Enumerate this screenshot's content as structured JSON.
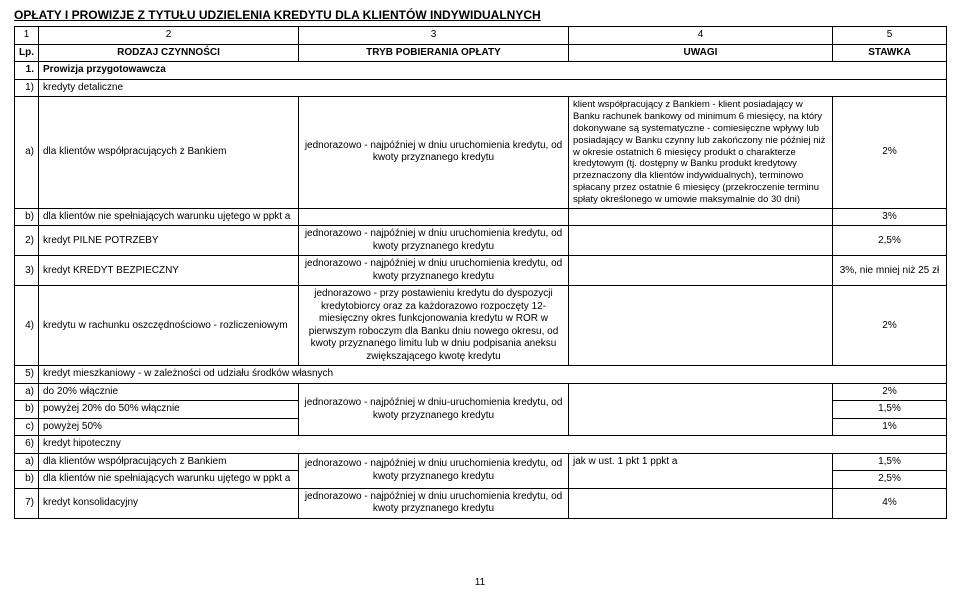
{
  "title": "OPŁATY I PROWIZJE Z TYTUŁU UDZIELENIA KREDYTU DLA KLIENTÓW INDYWIDUALNYCH",
  "header": {
    "c1": "1",
    "c2": "2",
    "c3": "3",
    "c4": "4",
    "c5": "5",
    "lp": "Lp.",
    "rodzaj": "RODZAJ CZYNNOŚCI",
    "tryb": "TRYB POBIERANIA OPŁATY",
    "uwagi": "UWAGI",
    "stawka": "STAWKA"
  },
  "r1": {
    "lp": "1.",
    "txt": "Prowizja przygotowawcza"
  },
  "r1_1": {
    "lp": "1)",
    "txt": "kredyty detaliczne"
  },
  "r1_a": {
    "lp": "a)",
    "txt": "dla klientów współpracujących z Bankiem",
    "tryb": "jednorazowo - najpóźniej w dniu uruchomienia kredytu, od kwoty przyznanego kredytu",
    "uwagi": "klient współpracujący z Bankiem - klient posiadający w Banku rachunek bankowy od minimum 6 miesięcy, na który dokonywane są systematyczne - comiesięczne wpływy lub posiadający w Banku czynny lub zakończony nie później niż w okresie ostatnich 6 miesięcy produkt o charakterze kredytowym (tj. dostępny w Banku produkt kredytowy przeznaczony dla klientów indywidualnych), terminowo spłacany przez ostatnie 6 miesięcy (przekroczenie terminu spłaty określonego w umowie maksymalnie do 30 dni)",
    "stawka": "2%"
  },
  "r1_b": {
    "lp": "b)",
    "txt": "dla klientów nie spełniających warunku ujętego w ppkt a",
    "stawka": "3%"
  },
  "r2": {
    "lp": "2)",
    "txt": "kredyt PILNE POTRZEBY",
    "tryb": "jednorazowo - najpóźniej w dniu uruchomienia kredytu, od kwoty przyznanego kredytu",
    "stawka": "2,5%"
  },
  "r3": {
    "lp": "3)",
    "txt": "kredyt KREDYT BEZPIECZNY",
    "tryb": "jednorazowo - najpóźniej w dniu uruchomienia kredytu, od kwoty przyznanego kredytu",
    "stawka": "3%, nie mniej niż 25 zł"
  },
  "r4": {
    "lp": "4)",
    "txt": "kredytu w rachunku oszczędnościowo - rozliczeniowym",
    "tryb": "jednorazowo - przy postawieniu kredytu do dyspozycji kredytobiorcy oraz za każdorazowo rozpoczęty 12-miesięczny okres funkcjonowania kredytu w ROR w pierwszym roboczym dla Banku dniu nowego okresu, od kwoty przyznanego limitu lub w dniu podpisania aneksu zwiększającego kwotę kredytu",
    "stawka": "2%"
  },
  "r5": {
    "lp": "5)",
    "txt": "kredyt mieszkaniowy - w zależności od udziału środków własnych"
  },
  "r5_a": {
    "lp": "a)",
    "txt": "do 20% włącznie",
    "stawka": "2%"
  },
  "r5_b": {
    "lp": "b)",
    "txt": "powyżej 20% do 50% włącznie",
    "tryb": "jednorazowo - najpóźniej w dniu-uruchomienia kredytu, od kwoty przyznanego kredytu",
    "stawka": "1,5%"
  },
  "r5_c": {
    "lp": "c)",
    "txt": "powyżej 50%",
    "stawka": "1%"
  },
  "r6": {
    "lp": "6)",
    "txt": "kredyt hipoteczny"
  },
  "r6_a": {
    "lp": "a)",
    "txt": "dla klientów współpracujących z Bankiem",
    "tryb": "jednorazowo - najpóźniej w dniu uruchomienia kredytu, od kwoty przyznanego kredytu",
    "uwagi": "jak w ust. 1 pkt 1 ppkt a",
    "stawka": "1,5%"
  },
  "r6_b": {
    "lp": "b)",
    "txt": "dla klientów nie spełniających warunku ujętego w ppkt a",
    "stawka": "2,5%"
  },
  "r7": {
    "lp": "7)",
    "txt": "kredyt konsolidacyjny",
    "tryb": "jednorazowo - najpóźniej w dniu uruchomienia kredytu, od kwoty przyznanego kredytu",
    "stawka": "4%"
  },
  "footer": "11"
}
